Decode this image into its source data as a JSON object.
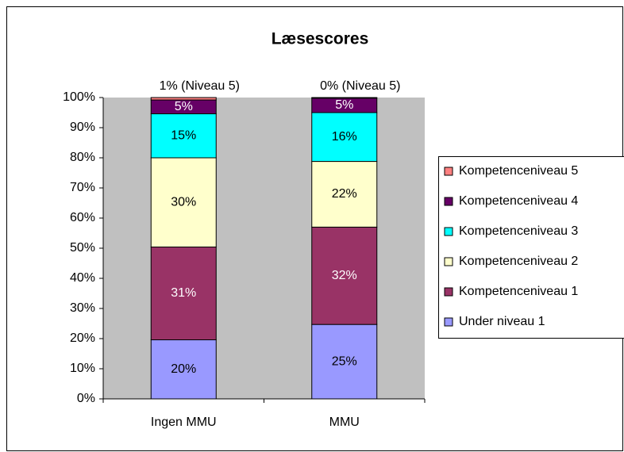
{
  "chart_data": {
    "type": "stacked_bar",
    "title": "Læsescores",
    "categories": [
      "Ingen MMU",
      "MMU"
    ],
    "series": [
      {
        "name": "Under niveau 1",
        "color": "#9999ff",
        "values": [
          19.6,
          24.7
        ],
        "value_labels": [
          "20%",
          "25%"
        ]
      },
      {
        "name": "Kompetenceniveau 1",
        "color": "#993366",
        "values": [
          30.8,
          32.3
        ],
        "value_labels": [
          "31%",
          "32%"
        ]
      },
      {
        "name": "Kompetenceniveau 2",
        "color": "#ffffcc",
        "values": [
          29.6,
          21.8
        ],
        "value_labels": [
          "30%",
          "22%"
        ]
      },
      {
        "name": "Kompetenceniveau 3",
        "color": "#00ffff",
        "values": [
          14.6,
          16.2
        ],
        "value_labels": [
          "15%",
          "16%"
        ]
      },
      {
        "name": "Kompetenceniveau 4",
        "color": "#660066",
        "values": [
          4.6,
          4.8
        ],
        "value_labels": [
          "5%",
          "5%"
        ]
      },
      {
        "name": "Kompetenceniveau 5",
        "color": "#ff8080",
        "values": [
          0.8,
          0.2
        ],
        "value_labels": [
          "1% (Niveau 5)",
          "0% (Niveau 5)"
        ]
      }
    ],
    "ylim": [
      0,
      100
    ],
    "yticks": [
      {
        "value": 0,
        "label": "0%"
      },
      {
        "value": 10,
        "label": "10%"
      },
      {
        "value": 20,
        "label": "20%"
      },
      {
        "value": 30,
        "label": "30%"
      },
      {
        "value": 40,
        "label": "40%"
      },
      {
        "value": 50,
        "label": "50%"
      },
      {
        "value": 60,
        "label": "60%"
      },
      {
        "value": 70,
        "label": "70%"
      },
      {
        "value": 80,
        "label": "80%"
      },
      {
        "value": 90,
        "label": "90%"
      },
      {
        "value": 100,
        "label": "100%"
      }
    ],
    "grid": false,
    "legend": "right"
  }
}
